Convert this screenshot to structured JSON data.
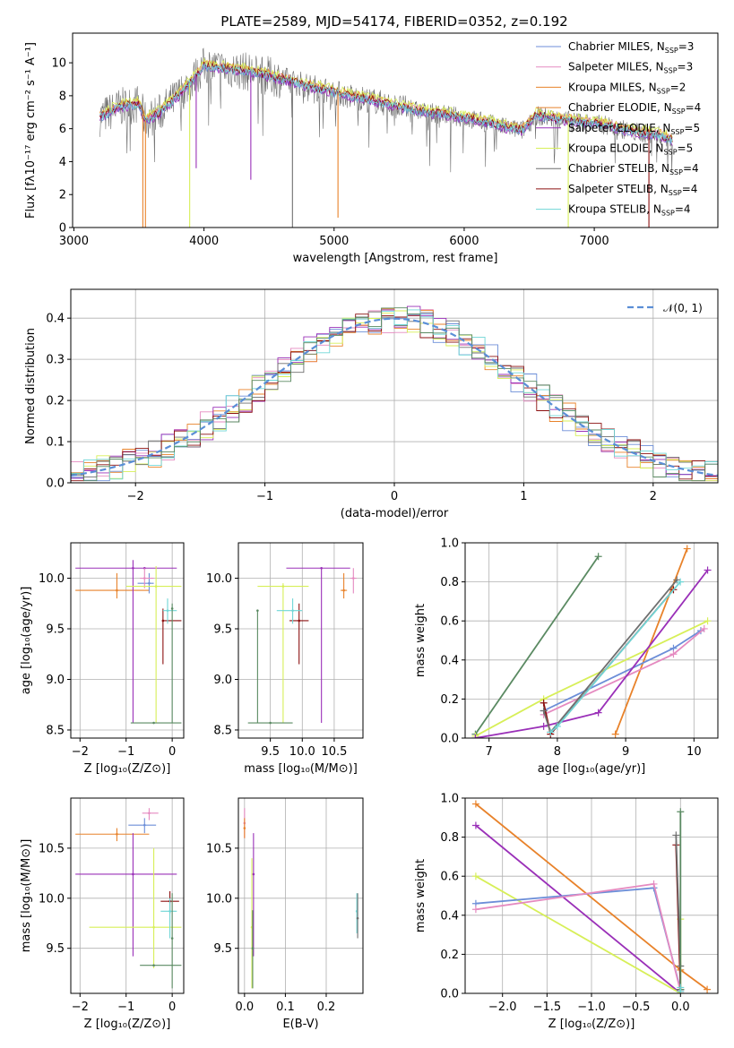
{
  "figure": {
    "title": "PLATE=2589, MJD=54174, FIBERID=0352, z=0.192"
  },
  "colors": {
    "chabrier_miles": "#6c8ed8",
    "salpeter_miles": "#e58ac0",
    "kroupa_miles": "#e8822a",
    "chabrier_elodie": "#e8822a",
    "salpeter_elodie": "#9a30b8",
    "kroupa_elodie": "#d7ef58",
    "chabrier_stelib": "#6f6f6f",
    "salpeter_stelib": "#8c1010",
    "kroupa_stelib": "#6fd6d6",
    "stelib_green": "#5a8a62",
    "normal": "#5a8ed6",
    "grid": "#b0b0b0"
  },
  "chart_data": [
    {
      "id": "spectrum",
      "type": "line",
      "title": "PLATE=2589, MJD=54174, FIBERID=0352, z=0.192",
      "xlabel": "wavelength [Angstrom, rest frame]",
      "ylabel": "Flux [fλ10⁻¹⁷ erg cm⁻² s⁻¹ A⁻¹]",
      "xlim": [
        2990,
        7950
      ],
      "ylim": [
        0,
        11.8
      ],
      "xticks": [
        3000,
        4000,
        5000,
        6000,
        7000
      ],
      "yticks": [
        0,
        2,
        4,
        6,
        8,
        10
      ],
      "legend_position": "top-right",
      "legend": [
        {
          "name": "Chabrier MILES, N",
          "sub": "SSP",
          "eq": "=3",
          "color": "chabrier_miles"
        },
        {
          "name": "Salpeter MILES, N",
          "sub": "SSP",
          "eq": "=3",
          "color": "salpeter_miles"
        },
        {
          "name": "Kroupa MILES, N",
          "sub": "SSP",
          "eq": "=2",
          "color": "kroupa_miles"
        },
        {
          "name": "Chabrier ELODIE, N",
          "sub": "SSP",
          "eq": "=4",
          "color": "chabrier_elodie"
        },
        {
          "name": "Salpeter ELODIE, N",
          "sub": "SSP",
          "eq": "=5",
          "color": "salpeter_elodie"
        },
        {
          "name": "Kroupa ELODIE, N",
          "sub": "SSP",
          "eq": "=5",
          "color": "kroupa_elodie"
        },
        {
          "name": "Chabrier STELIB, N",
          "sub": "SSP",
          "eq": "=4",
          "color": "chabrier_stelib"
        },
        {
          "name": "Salpeter STELIB, N",
          "sub": "SSP",
          "eq": "=4",
          "color": "salpeter_stelib"
        },
        {
          "name": "Kroupa STELIB, N",
          "sub": "SSP",
          "eq": "=4",
          "color": "kroupa_stelib"
        }
      ],
      "continuum": [
        [
          3200,
          6.7
        ],
        [
          3350,
          7.3
        ],
        [
          3500,
          7.5
        ],
        [
          3550,
          6.5
        ],
        [
          3650,
          6.9
        ],
        [
          3750,
          7.6
        ],
        [
          3850,
          8.4
        ],
        [
          3950,
          9.3
        ],
        [
          4000,
          9.8
        ],
        [
          4100,
          9.7
        ],
        [
          4300,
          9.5
        ],
        [
          4500,
          9.2
        ],
        [
          4700,
          8.8
        ],
        [
          4900,
          8.4
        ],
        [
          5100,
          8.0
        ],
        [
          5300,
          7.7
        ],
        [
          5500,
          7.3
        ],
        [
          5700,
          7.0
        ],
        [
          5900,
          6.8
        ],
        [
          6100,
          6.5
        ],
        [
          6300,
          6.1
        ],
        [
          6450,
          5.9
        ],
        [
          6550,
          6.8
        ],
        [
          6700,
          6.6
        ],
        [
          6900,
          6.4
        ],
        [
          7100,
          6.2
        ],
        [
          7300,
          5.8
        ],
        [
          7500,
          5.6
        ],
        [
          7600,
          5.3
        ]
      ],
      "dips": [
        {
          "x": 3530,
          "y": 0.0,
          "color": "kroupa_miles"
        },
        {
          "x": 3550,
          "y": 0.0,
          "color": "kroupa_miles"
        },
        {
          "x": 3890,
          "y": 0.0,
          "color": "kroupa_elodie"
        },
        {
          "x": 3940,
          "y": 3.6,
          "color": "salpeter_elodie"
        },
        {
          "x": 4360,
          "y": 2.9,
          "color": "salpeter_elodie"
        },
        {
          "x": 4680,
          "y": 0.0,
          "color": "chabrier_stelib"
        },
        {
          "x": 5030,
          "y": 0.6,
          "color": "kroupa_miles"
        },
        {
          "x": 6800,
          "y": 0.0,
          "color": "kroupa_elodie"
        },
        {
          "x": 7420,
          "y": 0.0,
          "color": "salpeter_stelib"
        }
      ]
    },
    {
      "id": "residuals",
      "type": "line",
      "xlabel": "(data-model)/error",
      "ylabel": "Normed distribution",
      "xlim": [
        -2.5,
        2.5
      ],
      "ylim": [
        0,
        0.47
      ],
      "xticks": [
        -2,
        -1,
        0,
        1,
        2
      ],
      "yticks": [
        0.0,
        0.1,
        0.2,
        0.3,
        0.4
      ],
      "legend_position": "top-right",
      "legend": [
        {
          "name": "𝒩(0, 1)",
          "color": "normal",
          "dashed": true
        }
      ],
      "normal_pdf": {
        "mean": 0,
        "sigma": 1
      }
    },
    {
      "id": "age_vs_z",
      "type": "scatter",
      "xlabel": "Z [log₁₀(Z/Z⊙)]",
      "ylabel": "age  [log₁₀(age/yr)]",
      "xlim": [
        -2.2,
        0.25
      ],
      "ylim": [
        8.42,
        10.35
      ],
      "xticks": [
        -2,
        -1,
        0
      ],
      "yticks": [
        8.5,
        9.0,
        9.5,
        10.0
      ],
      "points": [
        {
          "x": -1.2,
          "y": 9.88,
          "xlo": -2.1,
          "xhi": -0.5,
          "ylo": 9.8,
          "yhi": 10.05,
          "color": "kroupa_miles"
        },
        {
          "x": -0.6,
          "y": 10.1,
          "xlo": -2.1,
          "xhi": 0.1,
          "ylo": 10.1,
          "yhi": 10.1,
          "color": "salpeter_elodie"
        },
        {
          "x": -0.85,
          "y": 10.1,
          "xlo": -0.85,
          "xhi": -0.85,
          "ylo": 8.57,
          "yhi": 10.18,
          "color": "salpeter_elodie"
        },
        {
          "x": -0.5,
          "y": 9.95,
          "xlo": -0.75,
          "xhi": -0.4,
          "ylo": 9.85,
          "yhi": 10.05,
          "color": "chabrier_miles"
        },
        {
          "x": -0.6,
          "y": 10.0,
          "xlo": -0.7,
          "xhi": -0.4,
          "ylo": 9.9,
          "yhi": 10.1,
          "color": "salpeter_miles"
        },
        {
          "x": -0.35,
          "y": 9.92,
          "xlo": -1.0,
          "xhi": 0.2,
          "ylo": 8.57,
          "yhi": 10.12,
          "color": "kroupa_elodie"
        },
        {
          "x": -0.2,
          "y": 9.58,
          "xlo": -0.2,
          "xhi": 0.2,
          "ylo": 9.15,
          "yhi": 9.7,
          "color": "salpeter_stelib"
        },
        {
          "x": -0.1,
          "y": 9.68,
          "xlo": -0.2,
          "xhi": 0.1,
          "ylo": 9.55,
          "yhi": 9.8,
          "color": "kroupa_stelib"
        },
        {
          "x": -0.4,
          "y": 8.57,
          "xlo": -0.9,
          "xhi": 0.2,
          "ylo": 8.57,
          "yhi": 8.57,
          "color": "stelib_green"
        },
        {
          "x": 0.0,
          "y": 9.7,
          "xlo": 0.0,
          "xhi": 0.0,
          "ylo": 8.57,
          "yhi": 9.75,
          "color": "stelib_green"
        }
      ]
    },
    {
      "id": "age_vs_mass",
      "type": "scatter",
      "xlabel": "mass [log₁₀(M/M⊙)]",
      "ylabel": "",
      "xlim": [
        9.0,
        10.95
      ],
      "ylim": [
        8.42,
        10.35
      ],
      "xticks": [
        9.5,
        10.0,
        10.5
      ],
      "yticks": [
        8.5,
        9.0,
        9.5,
        10.0
      ],
      "points": [
        {
          "x": 10.3,
          "y": 10.1,
          "xlo": 9.75,
          "xhi": 10.75,
          "ylo": 8.57,
          "yhi": 10.1,
          "color": "salpeter_elodie"
        },
        {
          "x": 10.65,
          "y": 9.88,
          "xlo": 10.6,
          "xhi": 10.7,
          "ylo": 9.8,
          "yhi": 10.05,
          "color": "kroupa_miles"
        },
        {
          "x": 10.8,
          "y": 10.0,
          "xlo": 10.75,
          "xhi": 10.85,
          "ylo": 9.85,
          "yhi": 10.1,
          "color": "salpeter_miles"
        },
        {
          "x": 9.7,
          "y": 9.92,
          "xlo": 9.3,
          "xhi": 10.1,
          "ylo": 8.57,
          "yhi": 9.95,
          "color": "kroupa_elodie"
        },
        {
          "x": 9.95,
          "y": 9.58,
          "xlo": 9.8,
          "xhi": 10.1,
          "ylo": 9.15,
          "yhi": 9.75,
          "color": "salpeter_stelib"
        },
        {
          "x": 9.85,
          "y": 9.68,
          "xlo": 9.6,
          "xhi": 10.0,
          "ylo": 9.55,
          "yhi": 9.8,
          "color": "kroupa_stelib"
        },
        {
          "x": 9.5,
          "y": 8.57,
          "xlo": 9.15,
          "xhi": 9.85,
          "ylo": 8.57,
          "yhi": 8.57,
          "color": "stelib_green"
        },
        {
          "x": 9.3,
          "y": 9.68,
          "xlo": 9.3,
          "xhi": 9.3,
          "ylo": 8.57,
          "yhi": 9.68,
          "color": "stelib_green"
        }
      ]
    },
    {
      "id": "weight_vs_age",
      "type": "line",
      "xlabel": "age  [log₁₀(age/yr)]",
      "ylabel": "mass weight",
      "xlim": [
        6.65,
        10.35
      ],
      "ylim": [
        0,
        1
      ],
      "xticks": [
        7,
        8,
        9,
        10
      ],
      "yticks": [
        0.0,
        0.2,
        0.4,
        0.6,
        0.8,
        1.0
      ],
      "series": [
        {
          "color": "stelib_green",
          "points": [
            [
              6.8,
              0.02
            ],
            [
              8.6,
              0.93
            ]
          ]
        },
        {
          "color": "kroupa_miles",
          "points": [
            [
              8.85,
              0.02
            ],
            [
              9.9,
              0.97
            ]
          ]
        },
        {
          "color": "chabrier_miles",
          "points": [
            [
              7.8,
              0.14
            ],
            [
              9.7,
              0.46
            ],
            [
              10.1,
              0.55
            ]
          ]
        },
        {
          "color": "salpeter_miles",
          "points": [
            [
              7.8,
              0.12
            ],
            [
              9.7,
              0.43
            ],
            [
              10.15,
              0.56
            ]
          ]
        },
        {
          "color": "kroupa_elodie",
          "points": [
            [
              6.8,
              0.01
            ],
            [
              7.8,
              0.2
            ],
            [
              10.2,
              0.6
            ]
          ]
        },
        {
          "color": "salpeter_elodie",
          "points": [
            [
              6.8,
              0.0
            ],
            [
              7.8,
              0.06
            ],
            [
              8.6,
              0.13
            ],
            [
              10.2,
              0.86
            ]
          ]
        },
        {
          "color": "salpeter_stelib",
          "points": [
            [
              7.8,
              0.18
            ],
            [
              7.9,
              0.02
            ],
            [
              9.7,
              0.76
            ]
          ]
        },
        {
          "color": "chabrier_stelib",
          "points": [
            [
              7.8,
              0.14
            ],
            [
              7.9,
              0.03
            ],
            [
              9.75,
              0.81
            ]
          ]
        },
        {
          "color": "kroupa_stelib",
          "points": [
            [
              7.9,
              0.03
            ],
            [
              8.0,
              0.06
            ],
            [
              9.8,
              0.8
            ]
          ]
        }
      ]
    },
    {
      "id": "mass_vs_z",
      "type": "scatter",
      "xlabel": "Z [log₁₀(Z/Z⊙)]",
      "ylabel": "mass [log₁₀(M/M⊙)]",
      "xlim": [
        -2.2,
        0.25
      ],
      "ylim": [
        9.05,
        11.0
      ],
      "xticks": [
        -2,
        -1,
        0
      ],
      "yticks": [
        9.5,
        10.0,
        10.5
      ],
      "points": [
        {
          "x": -1.2,
          "y": 10.64,
          "xlo": -2.1,
          "xhi": -0.5,
          "ylo": 10.57,
          "yhi": 10.7,
          "color": "kroupa_miles"
        },
        {
          "x": -0.5,
          "y": 10.85,
          "xlo": -0.65,
          "xhi": -0.3,
          "ylo": 10.78,
          "yhi": 10.9,
          "color": "salpeter_miles"
        },
        {
          "x": -0.6,
          "y": 10.73,
          "xlo": -0.95,
          "xhi": -0.35,
          "ylo": 10.65,
          "yhi": 10.8,
          "color": "chabrier_miles"
        },
        {
          "x": -0.85,
          "y": 10.24,
          "xlo": -2.1,
          "xhi": 0.1,
          "ylo": 9.42,
          "yhi": 10.65,
          "color": "salpeter_elodie"
        },
        {
          "x": -0.4,
          "y": 9.71,
          "xlo": -1.8,
          "xhi": 0.2,
          "ylo": 9.3,
          "yhi": 10.5,
          "color": "kroupa_elodie"
        },
        {
          "x": -0.05,
          "y": 9.97,
          "xlo": -0.25,
          "xhi": 0.15,
          "ylo": 9.85,
          "yhi": 10.07,
          "color": "salpeter_stelib"
        },
        {
          "x": -0.05,
          "y": 9.87,
          "xlo": -0.25,
          "xhi": 0.1,
          "ylo": 9.6,
          "yhi": 10.0,
          "color": "kroupa_stelib"
        },
        {
          "x": -0.4,
          "y": 9.33,
          "xlo": -0.7,
          "xhi": 0.2,
          "ylo": 9.33,
          "yhi": 9.33,
          "color": "stelib_green"
        },
        {
          "x": 0.0,
          "y": 9.6,
          "xlo": 0.0,
          "xhi": 0.0,
          "ylo": 9.1,
          "yhi": 10.05,
          "color": "stelib_green"
        }
      ]
    },
    {
      "id": "mass_vs_ebv",
      "type": "scatter",
      "xlabel": "E(B-V)",
      "ylabel": "",
      "xlim": [
        -0.015,
        0.29
      ],
      "ylim": [
        9.05,
        11.0
      ],
      "xticks": [
        0.0,
        0.1,
        0.2
      ],
      "yticks": [
        9.5,
        10.0,
        10.5
      ],
      "points": [
        {
          "x": 0.0,
          "y": 10.75,
          "xlo": 0.0,
          "xhi": 0.0,
          "ylo": 10.6,
          "yhi": 10.9,
          "color": "salpeter_miles"
        },
        {
          "x": 0.0,
          "y": 10.7,
          "xlo": 0.0,
          "xhi": 0.0,
          "ylo": 10.6,
          "yhi": 10.8,
          "color": "kroupa_miles"
        },
        {
          "x": 0.022,
          "y": 10.24,
          "xlo": 0.022,
          "xhi": 0.022,
          "ylo": 9.42,
          "yhi": 10.65,
          "color": "salpeter_elodie"
        },
        {
          "x": 0.018,
          "y": 9.71,
          "xlo": 0.018,
          "xhi": 0.018,
          "ylo": 9.1,
          "yhi": 10.4,
          "color": "kroupa_elodie"
        },
        {
          "x": 0.02,
          "y": 9.5,
          "xlo": 0.02,
          "xhi": 0.02,
          "ylo": 9.1,
          "yhi": 9.88,
          "color": "stelib_green"
        },
        {
          "x": 0.275,
          "y": 9.87,
          "xlo": 0.275,
          "xhi": 0.275,
          "ylo": 9.65,
          "yhi": 10.05,
          "color": "kroupa_stelib"
        },
        {
          "x": 0.277,
          "y": 9.8,
          "xlo": 0.277,
          "xhi": 0.277,
          "ylo": 9.6,
          "yhi": 10.05,
          "color": "chabrier_stelib"
        }
      ]
    },
    {
      "id": "weight_vs_z",
      "type": "line",
      "xlabel": "Z [log₁₀(Z/Z⊙)]",
      "ylabel": "mass weight",
      "xlim": [
        -2.42,
        0.42
      ],
      "ylim": [
        0,
        1
      ],
      "xticks": [
        -2.0,
        -1.5,
        -1.0,
        -0.5,
        0.0
      ],
      "yticks": [
        0.0,
        0.2,
        0.4,
        0.6,
        0.8,
        1.0
      ],
      "series": [
        {
          "color": "kroupa_miles",
          "points": [
            [
              -2.3,
              0.97
            ],
            [
              0.0,
              0.12
            ],
            [
              0.3,
              0.02
            ]
          ]
        },
        {
          "color": "salpeter_elodie",
          "points": [
            [
              -2.3,
              0.86
            ],
            [
              0.0,
              0.0
            ]
          ]
        },
        {
          "color": "kroupa_elodie",
          "points": [
            [
              -2.3,
              0.6
            ],
            [
              0.0,
              0.0
            ],
            [
              0.0,
              0.38
            ]
          ]
        },
        {
          "color": "chabrier_miles",
          "points": [
            [
              -2.3,
              0.46
            ],
            [
              -0.3,
              0.54
            ],
            [
              0.0,
              0.02
            ]
          ]
        },
        {
          "color": "salpeter_miles",
          "points": [
            [
              -2.3,
              0.43
            ],
            [
              -0.3,
              0.56
            ],
            [
              0.0,
              0.01
            ]
          ]
        },
        {
          "color": "salpeter_stelib",
          "points": [
            [
              -0.05,
              0.76
            ],
            [
              0.0,
              0.02
            ]
          ]
        },
        {
          "color": "chabrier_stelib",
          "points": [
            [
              -0.05,
              0.81
            ],
            [
              0.0,
              0.14
            ]
          ]
        },
        {
          "color": "stelib_green",
          "points": [
            [
              0.0,
              0.93
            ],
            [
              0.0,
              0.02
            ]
          ]
        },
        {
          "color": "kroupa_stelib",
          "points": [
            [
              0.0,
              0.03
            ],
            [
              0.0,
              0.01
            ]
          ]
        }
      ]
    }
  ]
}
